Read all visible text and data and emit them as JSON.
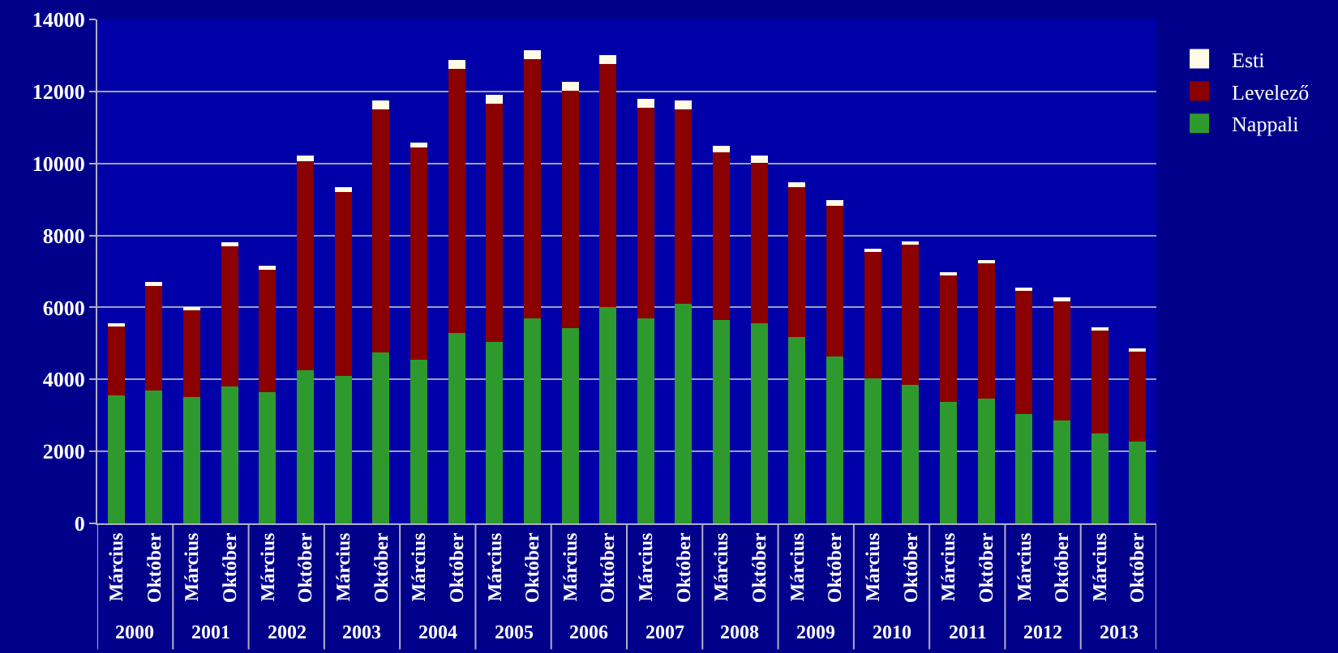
{
  "chart_data": {
    "type": "bar",
    "stacked": true,
    "categories": [
      "Március",
      "Október",
      "Március",
      "Október",
      "Március",
      "Október",
      "Március",
      "Október",
      "Március",
      "Október",
      "Március",
      "Október",
      "Március",
      "Október",
      "Március",
      "Október",
      "Március",
      "Október",
      "Március",
      "Október",
      "Március",
      "Október",
      "Március",
      "Október",
      "Március",
      "Október",
      "Március",
      "Október"
    ],
    "series": [
      {
        "name": "Nappali",
        "color": "#2e9a2e",
        "values": [
          3560,
          3700,
          3520,
          3800,
          3650,
          4260,
          4100,
          4760,
          4540,
          5280,
          5050,
          5700,
          5420,
          6020,
          5700,
          6110,
          5650,
          5560,
          5180,
          4630,
          4030,
          3840,
          3380,
          3470,
          3050,
          2870,
          2500,
          2270
        ]
      },
      {
        "name": "Levelező",
        "color": "#8b0000",
        "values": [
          1900,
          2900,
          2400,
          3900,
          3400,
          5800,
          5100,
          6750,
          5900,
          7350,
          6600,
          7200,
          6600,
          6750,
          5850,
          5400,
          4650,
          4450,
          4150,
          4200,
          3500,
          3900,
          3500,
          3750,
          3400,
          3300,
          2850,
          2500
        ]
      },
      {
        "name": "Esti",
        "color": "#fffbe6",
        "values": [
          100,
          100,
          100,
          100,
          100,
          150,
          150,
          250,
          150,
          250,
          250,
          250,
          250,
          250,
          250,
          250,
          200,
          200,
          150,
          150,
          100,
          100,
          100,
          100,
          100,
          100,
          100,
          100
        ]
      }
    ],
    "annotations": [
      "2000",
      "2001",
      "2002",
      "2003",
      "2004",
      "2005",
      "2006",
      "2007",
      "2008",
      "2009",
      "2010",
      "2011",
      "2012",
      "2013"
    ],
    "ylim": [
      0,
      14000
    ],
    "yticks": [
      0,
      2000,
      4000,
      6000,
      8000,
      10000,
      12000,
      14000
    ],
    "grid": true,
    "legend": "top right"
  }
}
